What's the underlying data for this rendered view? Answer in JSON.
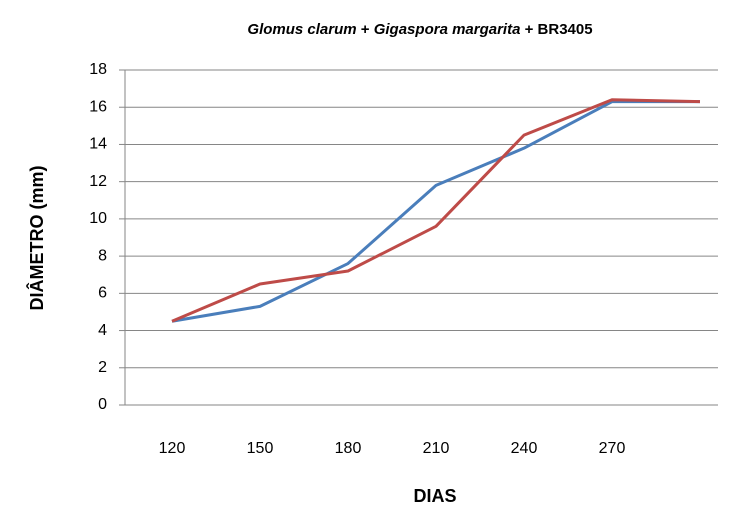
{
  "chart_data": {
    "type": "line",
    "title": [
      {
        "text": "Glomus clarum",
        "italic": true
      },
      {
        "text": " + ",
        "italic": false
      },
      {
        "text": "Gigaspora margarita",
        "italic": true
      },
      {
        "text": " + BR3405",
        "italic": false
      }
    ],
    "x_label": "DIAS",
    "y_label": "DIÂMETRO (mm)",
    "categories": [
      "120",
      "150",
      "180",
      "210",
      "240",
      "270",
      null
    ],
    "series": [
      {
        "color": "#4a7ebb",
        "values": [
          4.5,
          5.3,
          7.6,
          11.8,
          13.8,
          16.3,
          16.3
        ]
      },
      {
        "color": "#be4b48",
        "values": [
          4.5,
          6.5,
          7.2,
          9.6,
          14.5,
          16.4,
          16.3
        ]
      }
    ],
    "ylim": [
      0,
      18
    ],
    "yticks": [
      0,
      2,
      4,
      6,
      8,
      10,
      12,
      14,
      16,
      18
    ],
    "grid": true
  }
}
